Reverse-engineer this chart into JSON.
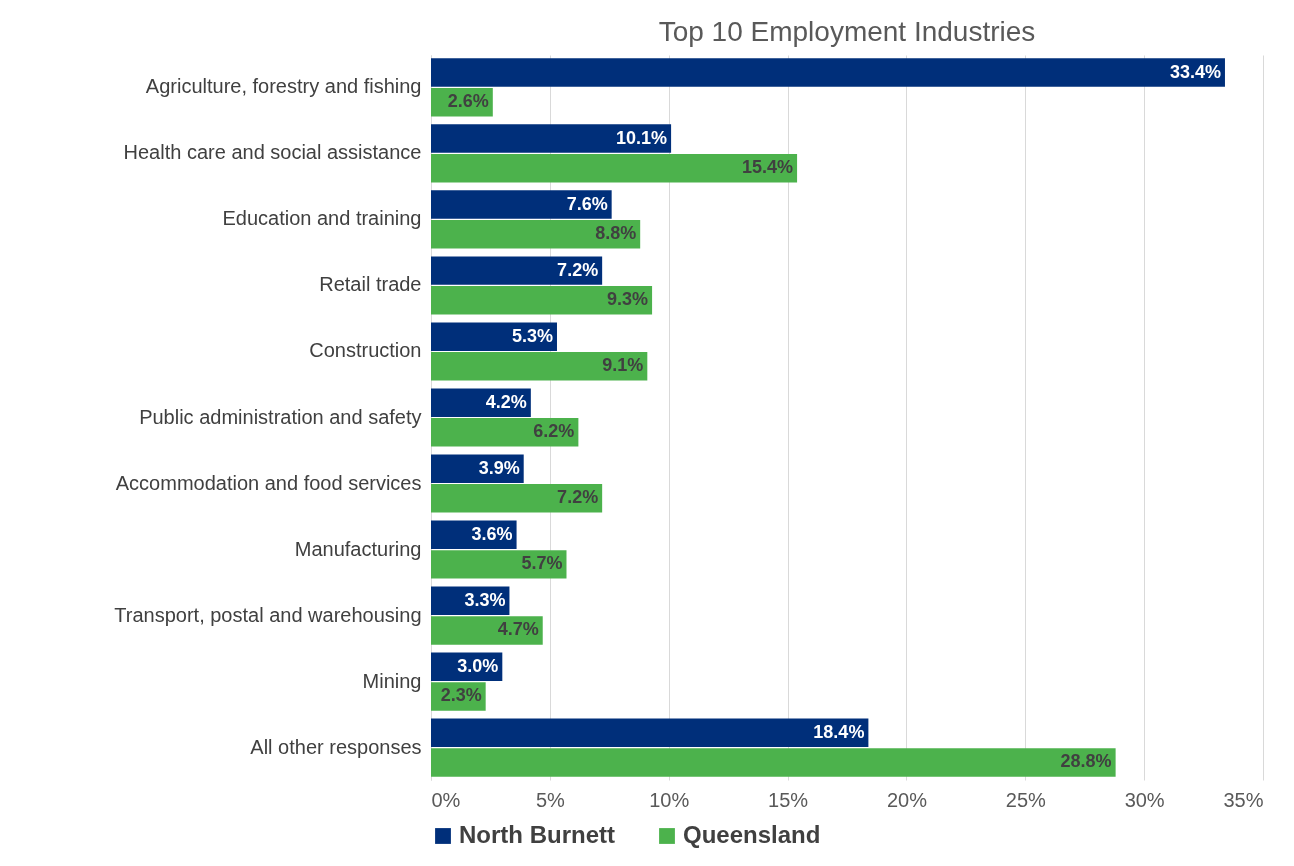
{
  "chart_data": {
    "type": "bar",
    "orientation": "horizontal",
    "title": "Top 10 Employment Industries",
    "categories": [
      "Agriculture, forestry and fishing",
      "Health care and social assistance",
      "Education and training",
      "Retail trade",
      "Construction",
      "Public administration and safety",
      "Accommodation and food services",
      "Manufacturing",
      "Transport, postal and warehousing",
      "Mining",
      "All other responses"
    ],
    "series": [
      {
        "name": "North Burnett",
        "color": "#002f7a",
        "values": [
          33.4,
          10.1,
          7.6,
          7.2,
          5.3,
          4.2,
          3.9,
          3.6,
          3.3,
          3.0,
          18.4
        ],
        "value_labels": [
          "33.4%",
          "10.1%",
          "7.6%",
          "7.2%",
          "5.3%",
          "4.2%",
          "3.9%",
          "3.6%",
          "3.3%",
          "3.0%",
          "18.4%"
        ]
      },
      {
        "name": "Queensland",
        "color": "#4cb24c",
        "values": [
          2.6,
          15.4,
          8.8,
          9.3,
          9.1,
          6.2,
          7.2,
          5.7,
          4.7,
          2.3,
          28.8
        ],
        "value_labels": [
          "2.6%",
          "15.4%",
          "8.8%",
          "9.3%",
          "9.1%",
          "6.2%",
          "7.2%",
          "5.7%",
          "4.7%",
          "2.3%",
          "28.8%"
        ]
      }
    ],
    "xlim": [
      0,
      35
    ],
    "xticks": [
      {
        "value": 0,
        "label": "0%"
      },
      {
        "value": 5,
        "label": "5%"
      },
      {
        "value": 10,
        "label": "10%"
      },
      {
        "value": 15,
        "label": "15%"
      },
      {
        "value": 20,
        "label": "20%"
      },
      {
        "value": 25,
        "label": "25%"
      },
      {
        "value": 30,
        "label": "30%"
      },
      {
        "value": 35,
        "label": "35%"
      }
    ],
    "grid": "x",
    "legend": "bottom"
  }
}
